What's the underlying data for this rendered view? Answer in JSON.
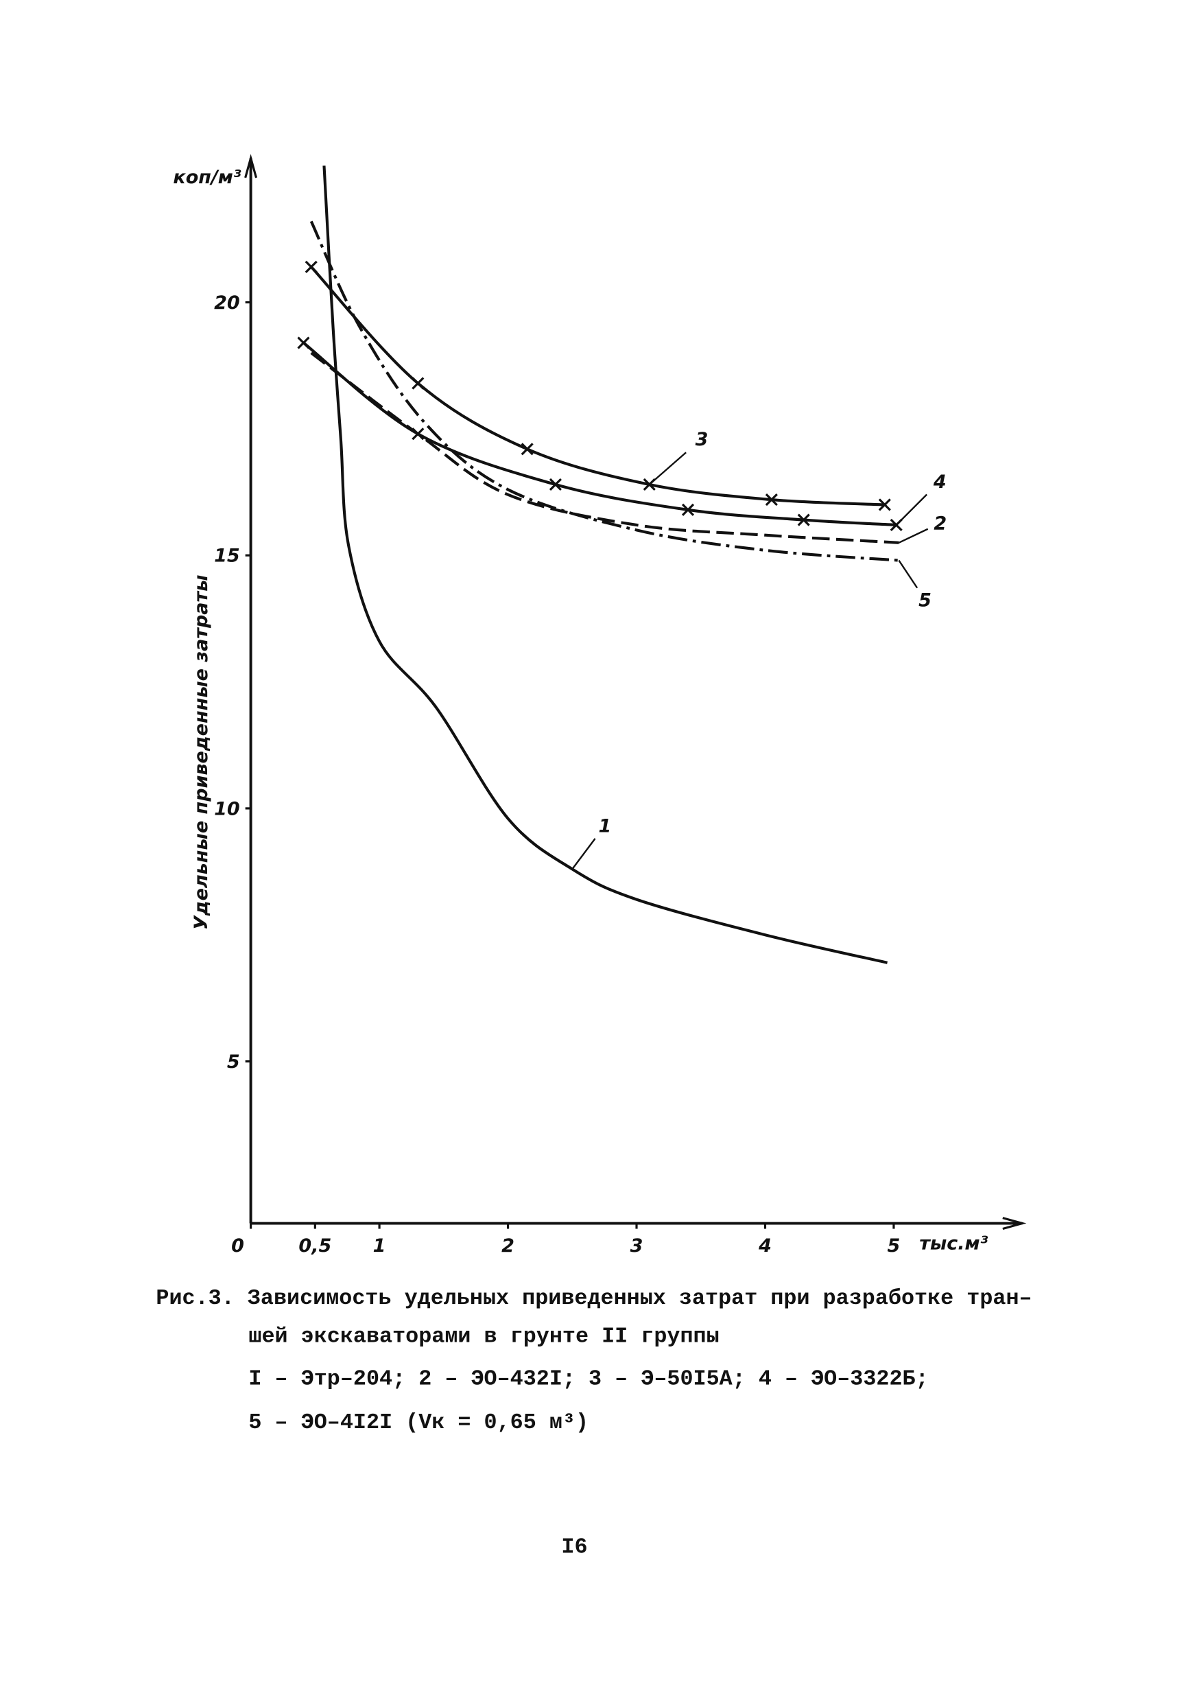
{
  "chart_data": {
    "type": "line",
    "y_unit": "коп/м³",
    "y_label": "Удельные приведенные затраты",
    "x_unit": "тыс.м³",
    "xlim": [
      0,
      6
    ],
    "ylim": [
      1.8,
      22.85
    ],
    "xticks": [
      0,
      {
        "value": 0.5,
        "label": "0,5"
      },
      1,
      2,
      3,
      4,
      5
    ],
    "yticks": [
      5,
      10,
      15,
      20
    ],
    "grid": false,
    "series": [
      {
        "name": "1",
        "color": "#111111",
        "dash": "solid",
        "marker": "none",
        "x": [
          0.57,
          0.64,
          0.7,
          0.76,
          1.0,
          1.44,
          2.0,
          2.5,
          3.0,
          4.0,
          4.95
        ],
        "values": [
          22.7,
          19.5,
          17.3,
          15.2,
          13.3,
          12.0,
          9.8,
          8.8,
          8.2,
          7.5,
          6.95
        ]
      },
      {
        "name": "2",
        "color": "#111111",
        "dash": "dashed",
        "marker": "none",
        "x": [
          0.47,
          1.3,
          2.0,
          3.0,
          4.0,
          5.04
        ],
        "values": [
          19.0,
          17.4,
          16.2,
          15.6,
          15.4,
          15.25
        ]
      },
      {
        "name": "3",
        "color": "#111111",
        "dash": "solid",
        "marker": "x",
        "x": [
          0.47,
          1.3,
          2.15,
          3.1,
          4.05,
          4.93
        ],
        "values": [
          20.7,
          18.4,
          17.1,
          16.4,
          16.1,
          16.0
        ]
      },
      {
        "name": "4",
        "color": "#111111",
        "dash": "solid",
        "marker": "x",
        "x": [
          0.41,
          1.3,
          2.37,
          3.4,
          4.3,
          5.02
        ],
        "values": [
          19.2,
          17.4,
          16.4,
          15.9,
          15.7,
          15.6
        ]
      },
      {
        "name": "5",
        "color": "#111111",
        "dash": "dashdot",
        "marker": "none",
        "x": [
          0.47,
          0.85,
          1.36,
          2.0,
          3.0,
          4.0,
          5.04
        ],
        "values": [
          21.6,
          19.5,
          17.6,
          16.3,
          15.5,
          15.1,
          14.9
        ]
      }
    ]
  },
  "caption": {
    "lines": [
      "Рис.3. Зависимость удельных приведенных затрат при разработке тран–",
      "шей экскаваторами в грунте II группы",
      "I – Этр–204; 2 – ЭО–432I; 3 – Э–50I5А; 4 – ЭО–3322Б;",
      "5 – ЭО–4I2I (Vк = 0,65 м³)"
    ]
  },
  "page_number": "I6"
}
